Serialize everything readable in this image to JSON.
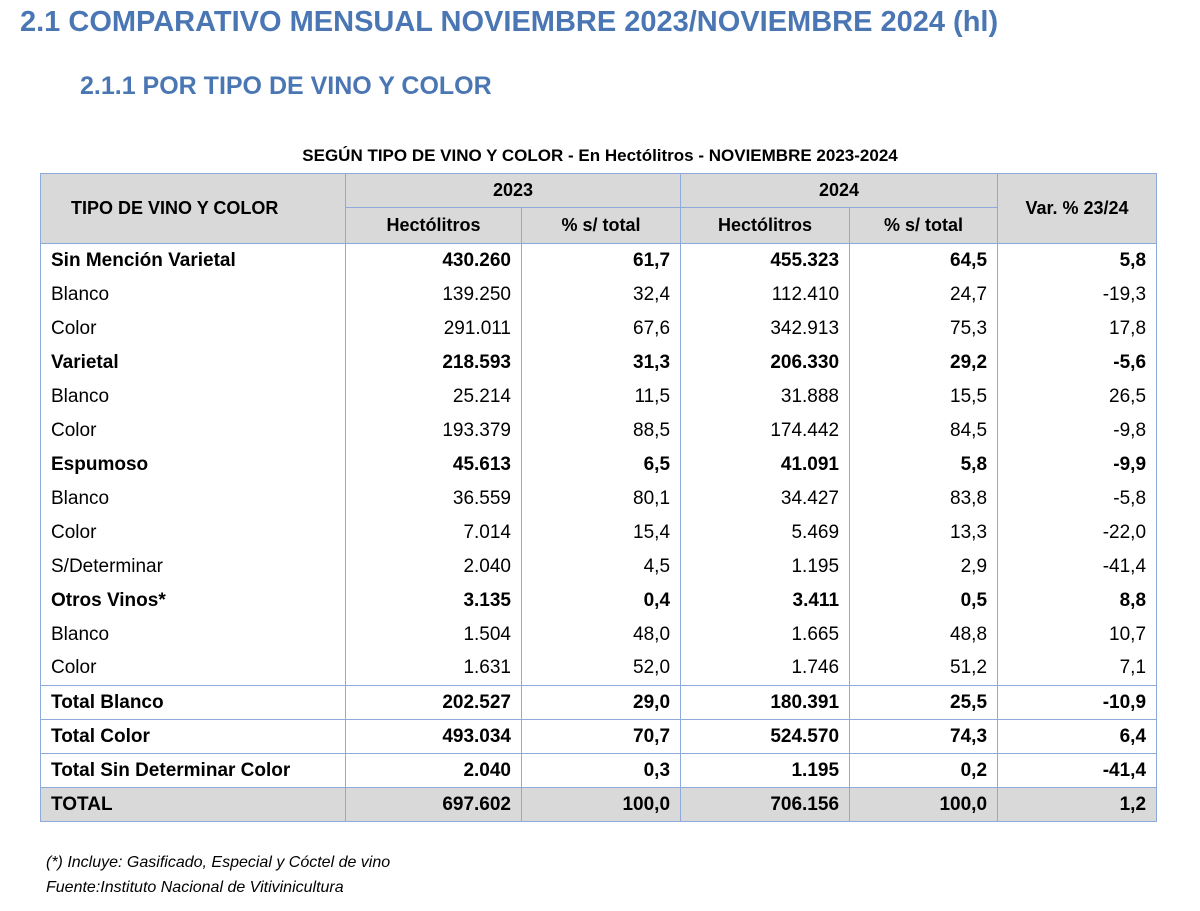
{
  "heading": "2.1 COMPARATIVO MENSUAL  NOVIEMBRE 2023/NOVIEMBRE 2024 (hl)",
  "subheading": "2.1.1   POR TIPO DE VINO Y COLOR",
  "caption": "SEGÚN TIPO DE VINO Y COLOR - En Hectólitros - NOVIEMBRE 2023-2024",
  "table": {
    "header": {
      "type_label": "TIPO DE VINO Y COLOR",
      "year1": "2023",
      "year2": "2024",
      "var_label": "Var. % 23/24",
      "hl1": "Hectólitros",
      "pct1": "% s/ total",
      "hl2": "Hectólitros",
      "pct2": "% s/ total"
    },
    "rows": [
      {
        "label": "Sin Mención Varietal",
        "hl2023": "430.260",
        "pct2023": "61,7",
        "hl2024": "455.323",
        "pct2024": "64,5",
        "var": "5,8"
      },
      {
        "label": "Blanco",
        "hl2023": "139.250",
        "pct2023": "32,4",
        "hl2024": "112.410",
        "pct2024": "24,7",
        "var": "-19,3"
      },
      {
        "label": "Color",
        "hl2023": "291.011",
        "pct2023": "67,6",
        "hl2024": "342.913",
        "pct2024": "75,3",
        "var": "17,8"
      },
      {
        "label": "Varietal",
        "hl2023": "218.593",
        "pct2023": "31,3",
        "hl2024": "206.330",
        "pct2024": "29,2",
        "var": "-5,6"
      },
      {
        "label": "Blanco",
        "hl2023": "25.214",
        "pct2023": "11,5",
        "hl2024": "31.888",
        "pct2024": "15,5",
        "var": "26,5"
      },
      {
        "label": "Color",
        "hl2023": "193.379",
        "pct2023": "88,5",
        "hl2024": "174.442",
        "pct2024": "84,5",
        "var": "-9,8"
      },
      {
        "label": "Espumoso",
        "hl2023": "45.613",
        "pct2023": "6,5",
        "hl2024": "41.091",
        "pct2024": "5,8",
        "var": "-9,9"
      },
      {
        "label": "Blanco",
        "hl2023": "36.559",
        "pct2023": "80,1",
        "hl2024": "34.427",
        "pct2024": "83,8",
        "var": "-5,8"
      },
      {
        "label": "Color",
        "hl2023": "7.014",
        "pct2023": "15,4",
        "hl2024": "5.469",
        "pct2024": "13,3",
        "var": "-22,0"
      },
      {
        "label": "S/Determinar",
        "hl2023": "2.040",
        "pct2023": "4,5",
        "hl2024": "1.195",
        "pct2024": "2,9",
        "var": "-41,4"
      },
      {
        "label": "Otros Vinos*",
        "hl2023": "3.135",
        "pct2023": "0,4",
        "hl2024": "3.411",
        "pct2024": "0,5",
        "var": "8,8"
      },
      {
        "label": "Blanco",
        "hl2023": "1.504",
        "pct2023": "48,0",
        "hl2024": "1.665",
        "pct2024": "48,8",
        "var": "10,7"
      },
      {
        "label": "Color",
        "hl2023": "1.631",
        "pct2023": "52,0",
        "hl2024": "1.746",
        "pct2024": "51,2",
        "var": "7,1"
      },
      {
        "label": "Total Blanco",
        "hl2023": "202.527",
        "pct2023": "29,0",
        "hl2024": "180.391",
        "pct2024": "25,5",
        "var": "-10,9"
      },
      {
        "label": "Total Color",
        "hl2023": "493.034",
        "pct2023": "70,7",
        "hl2024": "524.570",
        "pct2024": "74,3",
        "var": "6,4"
      },
      {
        "label": "Total Sin Determinar Color",
        "hl2023": "2.040",
        "pct2023": "0,3",
        "hl2024": "1.195",
        "pct2024": "0,2",
        "var": "-41,4"
      },
      {
        "label": "TOTAL",
        "hl2023": "697.602",
        "pct2023": "100,0",
        "hl2024": "706.156",
        "pct2024": "100,0",
        "var": "1,2"
      }
    ]
  },
  "footnote": "(*) Incluye: Gasificado, Especial y Cóctel de vino",
  "source": "Fuente:Instituto Nacional de Vitivinicultura"
}
